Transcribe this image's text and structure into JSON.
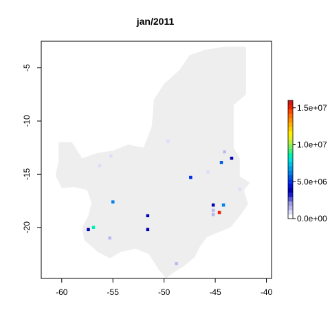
{
  "chart_data": {
    "type": "heatmap",
    "title": "jan/2011",
    "xlabel": "",
    "ylabel": "",
    "xlim": [
      -62,
      -39.5
    ],
    "ylim": [
      -24.8,
      -2.5
    ],
    "x_ticks": [
      -60,
      -55,
      -50,
      -45,
      -40
    ],
    "y_ticks": [
      -5,
      -10,
      -15,
      -20
    ],
    "x_tick_labels": [
      "-60",
      "-55",
      "-50",
      "-45",
      "-40"
    ],
    "y_tick_labels": [
      "-5",
      "-10",
      "-15",
      "-20"
    ],
    "region_fill_color": "#eeeeee",
    "region_outline": [
      [
        -44.0,
        -3.0
      ],
      [
        -42.0,
        -3.0
      ],
      [
        -42.0,
        -7.5
      ],
      [
        -43.2,
        -8.5
      ],
      [
        -43.2,
        -12.5
      ],
      [
        -42.6,
        -13.5
      ],
      [
        -42.6,
        -15.2
      ],
      [
        -41.6,
        -15.8
      ],
      [
        -42.2,
        -16.5
      ],
      [
        -41.8,
        -17.8
      ],
      [
        -42.5,
        -18.8
      ],
      [
        -43.5,
        -20.0
      ],
      [
        -44.8,
        -20.5
      ],
      [
        -45.8,
        -20.9
      ],
      [
        -46.5,
        -21.8
      ],
      [
        -47.0,
        -22.8
      ],
      [
        -48.0,
        -23.6
      ],
      [
        -49.3,
        -24.4
      ],
      [
        -49.8,
        -24.8
      ],
      [
        -50.5,
        -24.0
      ],
      [
        -51.5,
        -22.5
      ],
      [
        -52.8,
        -22.0
      ],
      [
        -54.2,
        -22.3
      ],
      [
        -55.3,
        -22.9
      ],
      [
        -56.5,
        -22.3
      ],
      [
        -57.8,
        -21.2
      ],
      [
        -58.0,
        -20.0
      ],
      [
        -57.4,
        -18.9
      ],
      [
        -57.1,
        -17.7
      ],
      [
        -57.5,
        -16.5
      ],
      [
        -58.8,
        -16.2
      ],
      [
        -60.0,
        -16.3
      ],
      [
        -60.6,
        -15.1
      ],
      [
        -60.3,
        -13.8
      ],
      [
        -60.3,
        -12.0
      ],
      [
        -59.0,
        -12.0
      ],
      [
        -58.0,
        -13.5
      ],
      [
        -56.5,
        -13.0
      ],
      [
        -55.0,
        -12.8
      ],
      [
        -53.5,
        -12.2
      ],
      [
        -52.0,
        -12.5
      ],
      [
        -51.2,
        -10.5
      ],
      [
        -51.0,
        -8.0
      ],
      [
        -50.0,
        -6.5
      ],
      [
        -48.5,
        -5.2
      ],
      [
        -47.5,
        -3.8
      ],
      [
        -46.0,
        -3.3
      ]
    ],
    "points": [
      {
        "x": -49.6,
        "y": -11.9,
        "value": 800000
      },
      {
        "x": -55.2,
        "y": -13.3,
        "value": 800000
      },
      {
        "x": -56.3,
        "y": -14.2,
        "value": 800000
      },
      {
        "x": -44.1,
        "y": -12.9,
        "value": 1200000
      },
      {
        "x": -43.4,
        "y": -13.5,
        "value": 3400000
      },
      {
        "x": -44.4,
        "y": -13.9,
        "value": 5500000
      },
      {
        "x": -45.7,
        "y": -14.8,
        "value": 800000
      },
      {
        "x": -47.4,
        "y": -15.3,
        "value": 5200000
      },
      {
        "x": -42.6,
        "y": -16.4,
        "value": 800000
      },
      {
        "x": -55.0,
        "y": -17.6,
        "value": 6000000
      },
      {
        "x": -45.2,
        "y": -17.9,
        "value": 3500000
      },
      {
        "x": -44.2,
        "y": -17.9,
        "value": 6200000
      },
      {
        "x": -45.2,
        "y": -18.4,
        "value": 1200000
      },
      {
        "x": -45.2,
        "y": -18.8,
        "value": 1200000
      },
      {
        "x": -44.6,
        "y": -18.6,
        "value": 15500000
      },
      {
        "x": -51.6,
        "y": -18.9,
        "value": 3900000
      },
      {
        "x": -51.6,
        "y": -20.2,
        "value": 3800000
      },
      {
        "x": -57.4,
        "y": -20.2,
        "value": 3600000
      },
      {
        "x": -56.9,
        "y": -20.0,
        "value": 8500000
      },
      {
        "x": -55.3,
        "y": -21.0,
        "value": 1300000
      },
      {
        "x": -48.8,
        "y": -23.4,
        "value": 1200000
      }
    ],
    "legend": {
      "min": 0,
      "max": 16000000,
      "ticks": [
        0,
        5000000,
        10000000,
        15000000
      ],
      "tick_labels": [
        "0.0e+00",
        "5.0e+06",
        "1.0e+07",
        "1.5e+07"
      ],
      "placement": "right",
      "colormap": [
        "#ffffff",
        "#dcdcff",
        "#b8b8f0",
        "#9a9ae0",
        "#5c5cd6",
        "#1d1dd0",
        "#0000b4",
        "#0010d8",
        "#0030e8",
        "#0058e0",
        "#0080e8",
        "#00a0e8",
        "#00c0e0",
        "#00e0e0",
        "#00f0b0",
        "#40f080",
        "#80f060",
        "#b8f040",
        "#e8f020",
        "#ffee00",
        "#ffd000",
        "#ffb000",
        "#ff9000",
        "#ff7000",
        "#ff4800",
        "#ee2200",
        "#cc1a1a"
      ]
    }
  }
}
